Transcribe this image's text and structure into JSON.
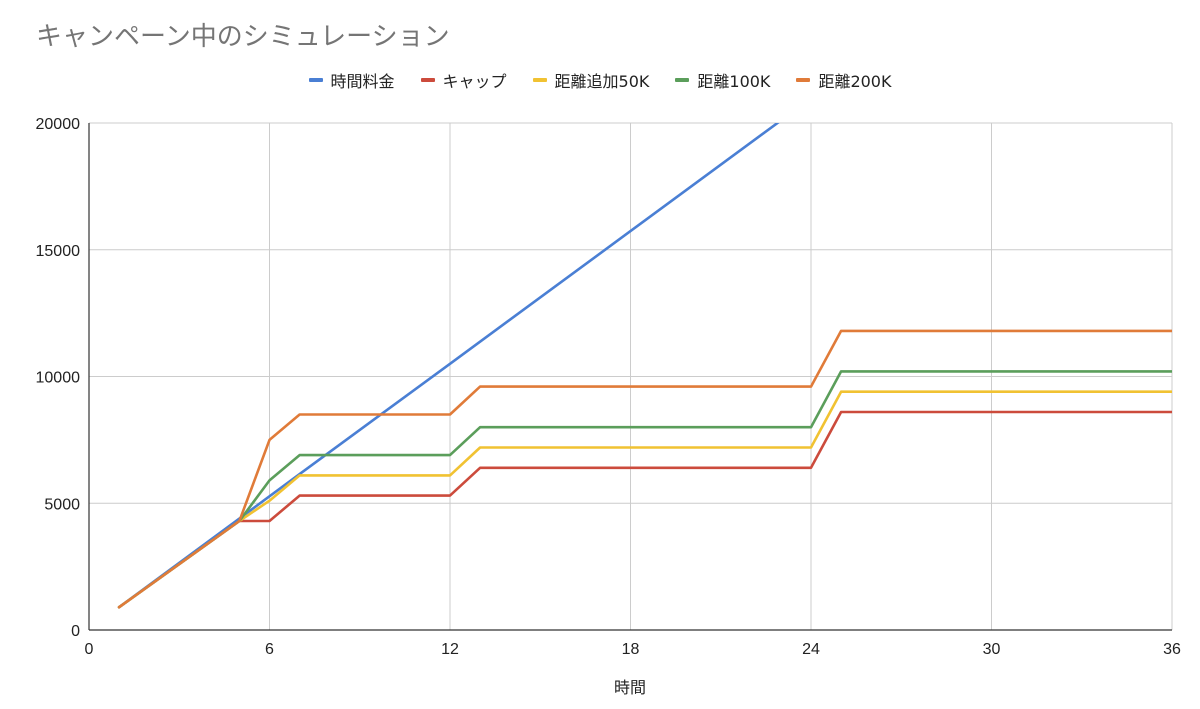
{
  "chart_data": {
    "type": "line",
    "title": "キャンペーン中のシミュレーション",
    "xlabel": "時間",
    "ylabel": "",
    "xlim": [
      0,
      36
    ],
    "ylim": [
      0,
      20000
    ],
    "xticks": [
      0,
      6,
      12,
      18,
      24,
      30,
      36
    ],
    "yticks": [
      0,
      5000,
      10000,
      15000,
      20000
    ],
    "grid": true,
    "legend_position": "top-center",
    "series": [
      {
        "name": "時間料金",
        "color": "#4a7fd4",
        "points": [
          [
            1,
            900
          ],
          [
            5,
            4400
          ],
          [
            7,
            6150
          ],
          [
            12,
            10500
          ],
          [
            23,
            20100
          ]
        ]
      },
      {
        "name": "キャップ",
        "color": "#cc4b3c",
        "points": [
          [
            1,
            900
          ],
          [
            5,
            4300
          ],
          [
            6,
            4300
          ],
          [
            7,
            5300
          ],
          [
            12,
            5300
          ],
          [
            13,
            6400
          ],
          [
            24,
            6400
          ],
          [
            25,
            8600
          ],
          [
            36,
            8600
          ]
        ]
      },
      {
        "name": "距離追加50K",
        "color": "#f1c232",
        "points": [
          [
            1,
            900
          ],
          [
            5,
            4300
          ],
          [
            6,
            5100
          ],
          [
            7,
            6100
          ],
          [
            12,
            6100
          ],
          [
            13,
            7200
          ],
          [
            24,
            7200
          ],
          [
            25,
            9400
          ],
          [
            36,
            9400
          ]
        ]
      },
      {
        "name": "距離100K",
        "color": "#5b9e5b",
        "points": [
          [
            1,
            900
          ],
          [
            5,
            4300
          ],
          [
            6,
            5900
          ],
          [
            7,
            6900
          ],
          [
            12,
            6900
          ],
          [
            13,
            8000
          ],
          [
            24,
            8000
          ],
          [
            25,
            10200
          ],
          [
            36,
            10200
          ]
        ]
      },
      {
        "name": "距離200K",
        "color": "#e07b39",
        "points": [
          [
            1,
            900
          ],
          [
            5,
            4300
          ],
          [
            6,
            7500
          ],
          [
            7,
            8500
          ],
          [
            12,
            8500
          ],
          [
            13,
            9600
          ],
          [
            24,
            9600
          ],
          [
            25,
            11800
          ],
          [
            36,
            11800
          ]
        ]
      }
    ]
  }
}
